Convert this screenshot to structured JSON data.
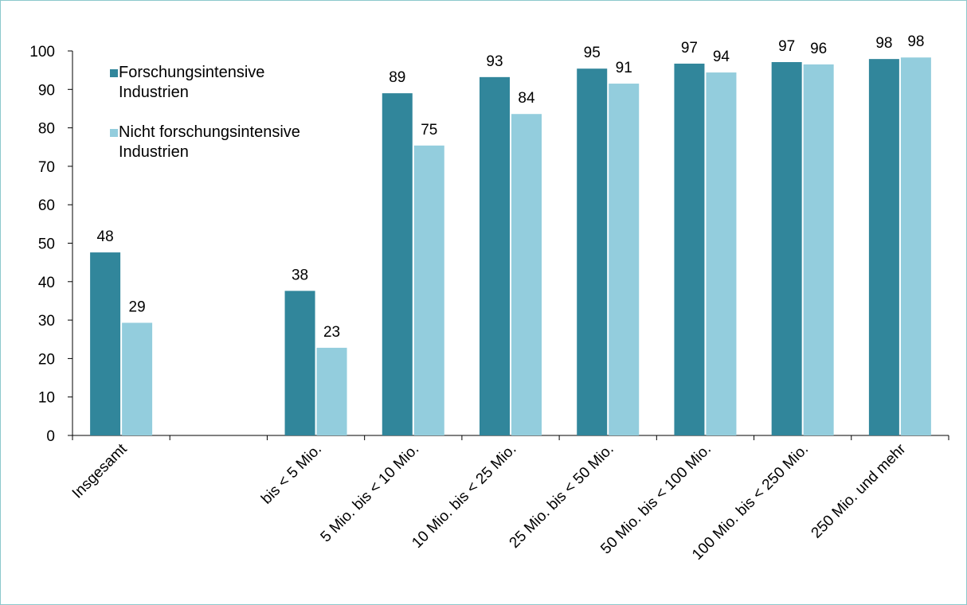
{
  "chart_data": {
    "type": "bar",
    "categories": [
      "Insgesamt",
      null,
      "bis < 5 Mio.",
      "5 Mio. bis < 10 Mio.",
      "10 Mio. bis < 25 Mio.",
      "25 Mio. bis < 50 Mio.",
      "50 Mio. bis < 100 Mio.",
      "100 Mio. bis < 250 Mio.",
      "250 Mio. und mehr"
    ],
    "series": [
      {
        "name": "Forschungsintensive Industrien",
        "color": "#31869b",
        "values": [
          47.6,
          null,
          37.6,
          89.0,
          93.2,
          95.4,
          96.7,
          97.1,
          97.9
        ],
        "value_labels": [
          "48",
          null,
          "38",
          "89",
          "93",
          "95",
          "97",
          "97",
          "98"
        ]
      },
      {
        "name": "Nicht forschungsintensive Industrien",
        "color": "#93cddd",
        "values": [
          29.3,
          null,
          22.8,
          75.4,
          83.6,
          91.5,
          94.4,
          96.5,
          98.3
        ],
        "value_labels": [
          "29",
          null,
          "23",
          "75",
          "84",
          "91",
          "94",
          "96",
          "98"
        ]
      }
    ],
    "ylim": [
      0,
      100
    ],
    "yticks": [
      0,
      10,
      20,
      30,
      40,
      50,
      60,
      70,
      80,
      90,
      100
    ],
    "legend": "upper left"
  }
}
